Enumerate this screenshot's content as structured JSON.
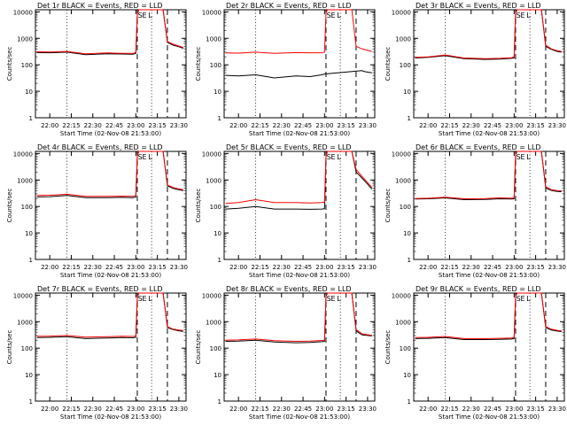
{
  "colors": {
    "events": "#000000",
    "lld": "#ff0000",
    "background": "#ffffff"
  },
  "shared_axes": {
    "xlabel": "Start Time (02-Nov-08 21:53:00)",
    "ylabel": "Counts/sec",
    "x_ticks": [
      "22:00",
      "22:15",
      "22:30",
      "22:45",
      "23:00",
      "23:15",
      "23:30"
    ],
    "x_tick_minutes": [
      420,
      435,
      450,
      465,
      480,
      495,
      510
    ],
    "xlim_minutes": [
      410,
      515
    ],
    "y_ticks": [
      "1",
      "10",
      "100",
      "1000",
      "10000"
    ],
    "y_tick_values": [
      1,
      10,
      100,
      1000,
      10000
    ],
    "ylim": [
      1,
      12000
    ],
    "yscale": "log",
    "markers": {
      "dotted_minutes": [
        432,
        491
      ],
      "dashed_minutes": [
        481,
        502
      ],
      "labels": [
        {
          "text": "S",
          "minute": 483
        },
        {
          "text": "E",
          "minute": 486
        },
        {
          "text": "L",
          "minute": 490
        }
      ]
    }
  },
  "chart_data": [
    {
      "type": "line",
      "title": "Det 1r BLACK = Events, RED = LLD",
      "series": [
        {
          "color": "#000000",
          "x": [
            411,
            420,
            432,
            445,
            460,
            470,
            478,
            480,
            481,
            482,
            486,
            490,
            495,
            499,
            502,
            506,
            510,
            513
          ],
          "y": [
            290,
            285,
            300,
            240,
            260,
            255,
            250,
            270,
            8000,
            12000,
            12000,
            12000,
            12000,
            12000,
            700,
            550,
            480,
            420
          ]
        },
        {
          "color": "#ff0000",
          "x": [
            411,
            420,
            432,
            445,
            460,
            470,
            478,
            480,
            481,
            482,
            486,
            490,
            495,
            499,
            502,
            506,
            510,
            513
          ],
          "y": [
            310,
            305,
            320,
            260,
            280,
            270,
            270,
            290,
            8500,
            12000,
            12000,
            12000,
            12000,
            12000,
            750,
            600,
            510,
            450
          ]
        }
      ]
    },
    {
      "type": "line",
      "title": "Det 2r BLACK = Events, RED = LLD",
      "series": [
        {
          "color": "#000000",
          "x": [
            411,
            420,
            432,
            445,
            460,
            470,
            478,
            480,
            506,
            508,
            513
          ],
          "y": [
            40,
            38,
            42,
            32,
            38,
            36,
            42,
            45,
            60,
            55,
            50
          ]
        },
        {
          "color": "#ff0000",
          "x": [
            411,
            420,
            432,
            445,
            460,
            470,
            478,
            480,
            481,
            482,
            486,
            490,
            495,
            499,
            502,
            506,
            510,
            513
          ],
          "y": [
            280,
            275,
            300,
            270,
            290,
            285,
            285,
            300,
            9000,
            12000,
            12000,
            12000,
            12000,
            12000,
            500,
            400,
            350,
            320
          ]
        }
      ]
    },
    {
      "type": "line",
      "title": "Det 3r BLACK = Events, RED = LLD",
      "series": [
        {
          "color": "#000000",
          "x": [
            411,
            420,
            432,
            445,
            460,
            470,
            478,
            480,
            481,
            482,
            486,
            490,
            495,
            499,
            502,
            506,
            510,
            513
          ],
          "y": [
            180,
            190,
            220,
            170,
            160,
            165,
            175,
            180,
            9000,
            12000,
            12000,
            12000,
            12000,
            12000,
            500,
            380,
            320,
            300
          ]
        },
        {
          "color": "#ff0000",
          "x": [
            411,
            420,
            432,
            445,
            460,
            470,
            478,
            480,
            481,
            482,
            486,
            490,
            495,
            499,
            502,
            506,
            510,
            513
          ],
          "y": [
            190,
            200,
            235,
            180,
            170,
            175,
            185,
            195,
            9500,
            12000,
            12000,
            12000,
            12000,
            12000,
            550,
            400,
            340,
            320
          ]
        }
      ]
    },
    {
      "type": "line",
      "title": "Det 4r BLACK = Events, RED = LLD",
      "series": [
        {
          "color": "#000000",
          "x": [
            411,
            420,
            432,
            445,
            460,
            470,
            478,
            480,
            481,
            482,
            486,
            490,
            495,
            499,
            502,
            506,
            510,
            513
          ],
          "y": [
            230,
            235,
            260,
            215,
            215,
            220,
            215,
            230,
            8000,
            12000,
            12000,
            12000,
            12000,
            12000,
            600,
            480,
            430,
            400
          ]
        },
        {
          "color": "#ff0000",
          "x": [
            411,
            420,
            432,
            445,
            460,
            470,
            478,
            480,
            481,
            482,
            486,
            490,
            495,
            499,
            502,
            506,
            510,
            513
          ],
          "y": [
            260,
            265,
            290,
            240,
            240,
            245,
            240,
            260,
            8500,
            12000,
            12000,
            12000,
            12000,
            12000,
            650,
            520,
            460,
            430
          ]
        }
      ]
    },
    {
      "type": "line",
      "title": "Det 5r BLACK = Events, RED = LLD",
      "series": [
        {
          "color": "#000000",
          "x": [
            411,
            420,
            432,
            445,
            460,
            470,
            478,
            480,
            481,
            482,
            486,
            490,
            495,
            499,
            502,
            506,
            510,
            513
          ],
          "y": [
            80,
            85,
            100,
            80,
            80,
            78,
            80,
            82,
            8000,
            12000,
            12000,
            12000,
            12000,
            12000,
            2000,
            1200,
            700,
            450
          ]
        },
        {
          "color": "#ff0000",
          "x": [
            411,
            420,
            432,
            445,
            460,
            470,
            478,
            480,
            481,
            482,
            486,
            490,
            495,
            499,
            502,
            506,
            510,
            513
          ],
          "y": [
            130,
            140,
            180,
            140,
            140,
            135,
            140,
            145,
            8500,
            12000,
            12000,
            12000,
            12000,
            12000,
            2500,
            1400,
            800,
            520
          ]
        }
      ]
    },
    {
      "type": "line",
      "title": "Det 6r BLACK = Events, RED = LLD",
      "series": [
        {
          "color": "#000000",
          "x": [
            411,
            420,
            432,
            445,
            460,
            470,
            478,
            480,
            481,
            482,
            486,
            490,
            495,
            499,
            502,
            506,
            510,
            513
          ],
          "y": [
            190,
            195,
            210,
            180,
            185,
            195,
            190,
            195,
            9000,
            12000,
            12000,
            12000,
            12000,
            12000,
            500,
            400,
            370,
            360
          ]
        },
        {
          "color": "#ff0000",
          "x": [
            411,
            420,
            432,
            445,
            460,
            470,
            478,
            480,
            481,
            482,
            486,
            490,
            495,
            499,
            502,
            506,
            510,
            513
          ],
          "y": [
            200,
            205,
            225,
            195,
            200,
            210,
            205,
            210,
            9500,
            12000,
            12000,
            12000,
            12000,
            12000,
            550,
            430,
            400,
            390
          ]
        }
      ]
    },
    {
      "type": "line",
      "title": "Det 7r BLACK = Events, RED = LLD",
      "series": [
        {
          "color": "#000000",
          "x": [
            411,
            420,
            432,
            445,
            460,
            470,
            478,
            480,
            481,
            482,
            486,
            490,
            495,
            499,
            502,
            506,
            510,
            513
          ],
          "y": [
            250,
            255,
            270,
            230,
            240,
            250,
            245,
            255,
            8000,
            12000,
            12000,
            12000,
            12000,
            12000,
            600,
            500,
            450,
            430
          ]
        },
        {
          "color": "#ff0000",
          "x": [
            411,
            420,
            432,
            445,
            460,
            470,
            478,
            480,
            481,
            482,
            486,
            490,
            495,
            499,
            502,
            506,
            510,
            513
          ],
          "y": [
            280,
            285,
            300,
            260,
            270,
            280,
            275,
            285,
            8500,
            12000,
            12000,
            12000,
            12000,
            12000,
            650,
            520,
            480,
            460
          ]
        }
      ]
    },
    {
      "type": "line",
      "title": "Det 8r BLACK = Events, RED = LLD",
      "series": [
        {
          "color": "#000000",
          "x": [
            411,
            420,
            432,
            445,
            460,
            470,
            478,
            480,
            481,
            482,
            486,
            490,
            495,
            499,
            502,
            506,
            510,
            513
          ],
          "y": [
            180,
            185,
            200,
            170,
            160,
            165,
            175,
            180,
            9000,
            12000,
            12000,
            12000,
            12000,
            12000,
            450,
            320,
            300,
            290
          ]
        },
        {
          "color": "#ff0000",
          "x": [
            411,
            420,
            432,
            445,
            460,
            470,
            478,
            480,
            481,
            482,
            486,
            490,
            495,
            499,
            502,
            506,
            510,
            513
          ],
          "y": [
            200,
            205,
            220,
            190,
            180,
            185,
            195,
            200,
            9500,
            12000,
            12000,
            12000,
            12000,
            12000,
            500,
            350,
            320,
            310
          ]
        }
      ]
    },
    {
      "type": "line",
      "title": "Det 9r BLACK = Events, RED = LLD",
      "series": [
        {
          "color": "#000000",
          "x": [
            411,
            420,
            432,
            445,
            460,
            470,
            478,
            480,
            481,
            482,
            486,
            490,
            495,
            499,
            502,
            506,
            510,
            513
          ],
          "y": [
            230,
            235,
            250,
            210,
            210,
            215,
            220,
            230,
            9000,
            12000,
            12000,
            12000,
            12000,
            12000,
            600,
            480,
            440,
            420
          ]
        },
        {
          "color": "#ff0000",
          "x": [
            411,
            420,
            432,
            445,
            460,
            470,
            478,
            480,
            481,
            482,
            486,
            490,
            495,
            499,
            502,
            506,
            510,
            513
          ],
          "y": [
            250,
            255,
            275,
            230,
            230,
            235,
            240,
            250,
            9500,
            12000,
            12000,
            12000,
            12000,
            12000,
            650,
            520,
            470,
            450
          ]
        }
      ]
    }
  ]
}
